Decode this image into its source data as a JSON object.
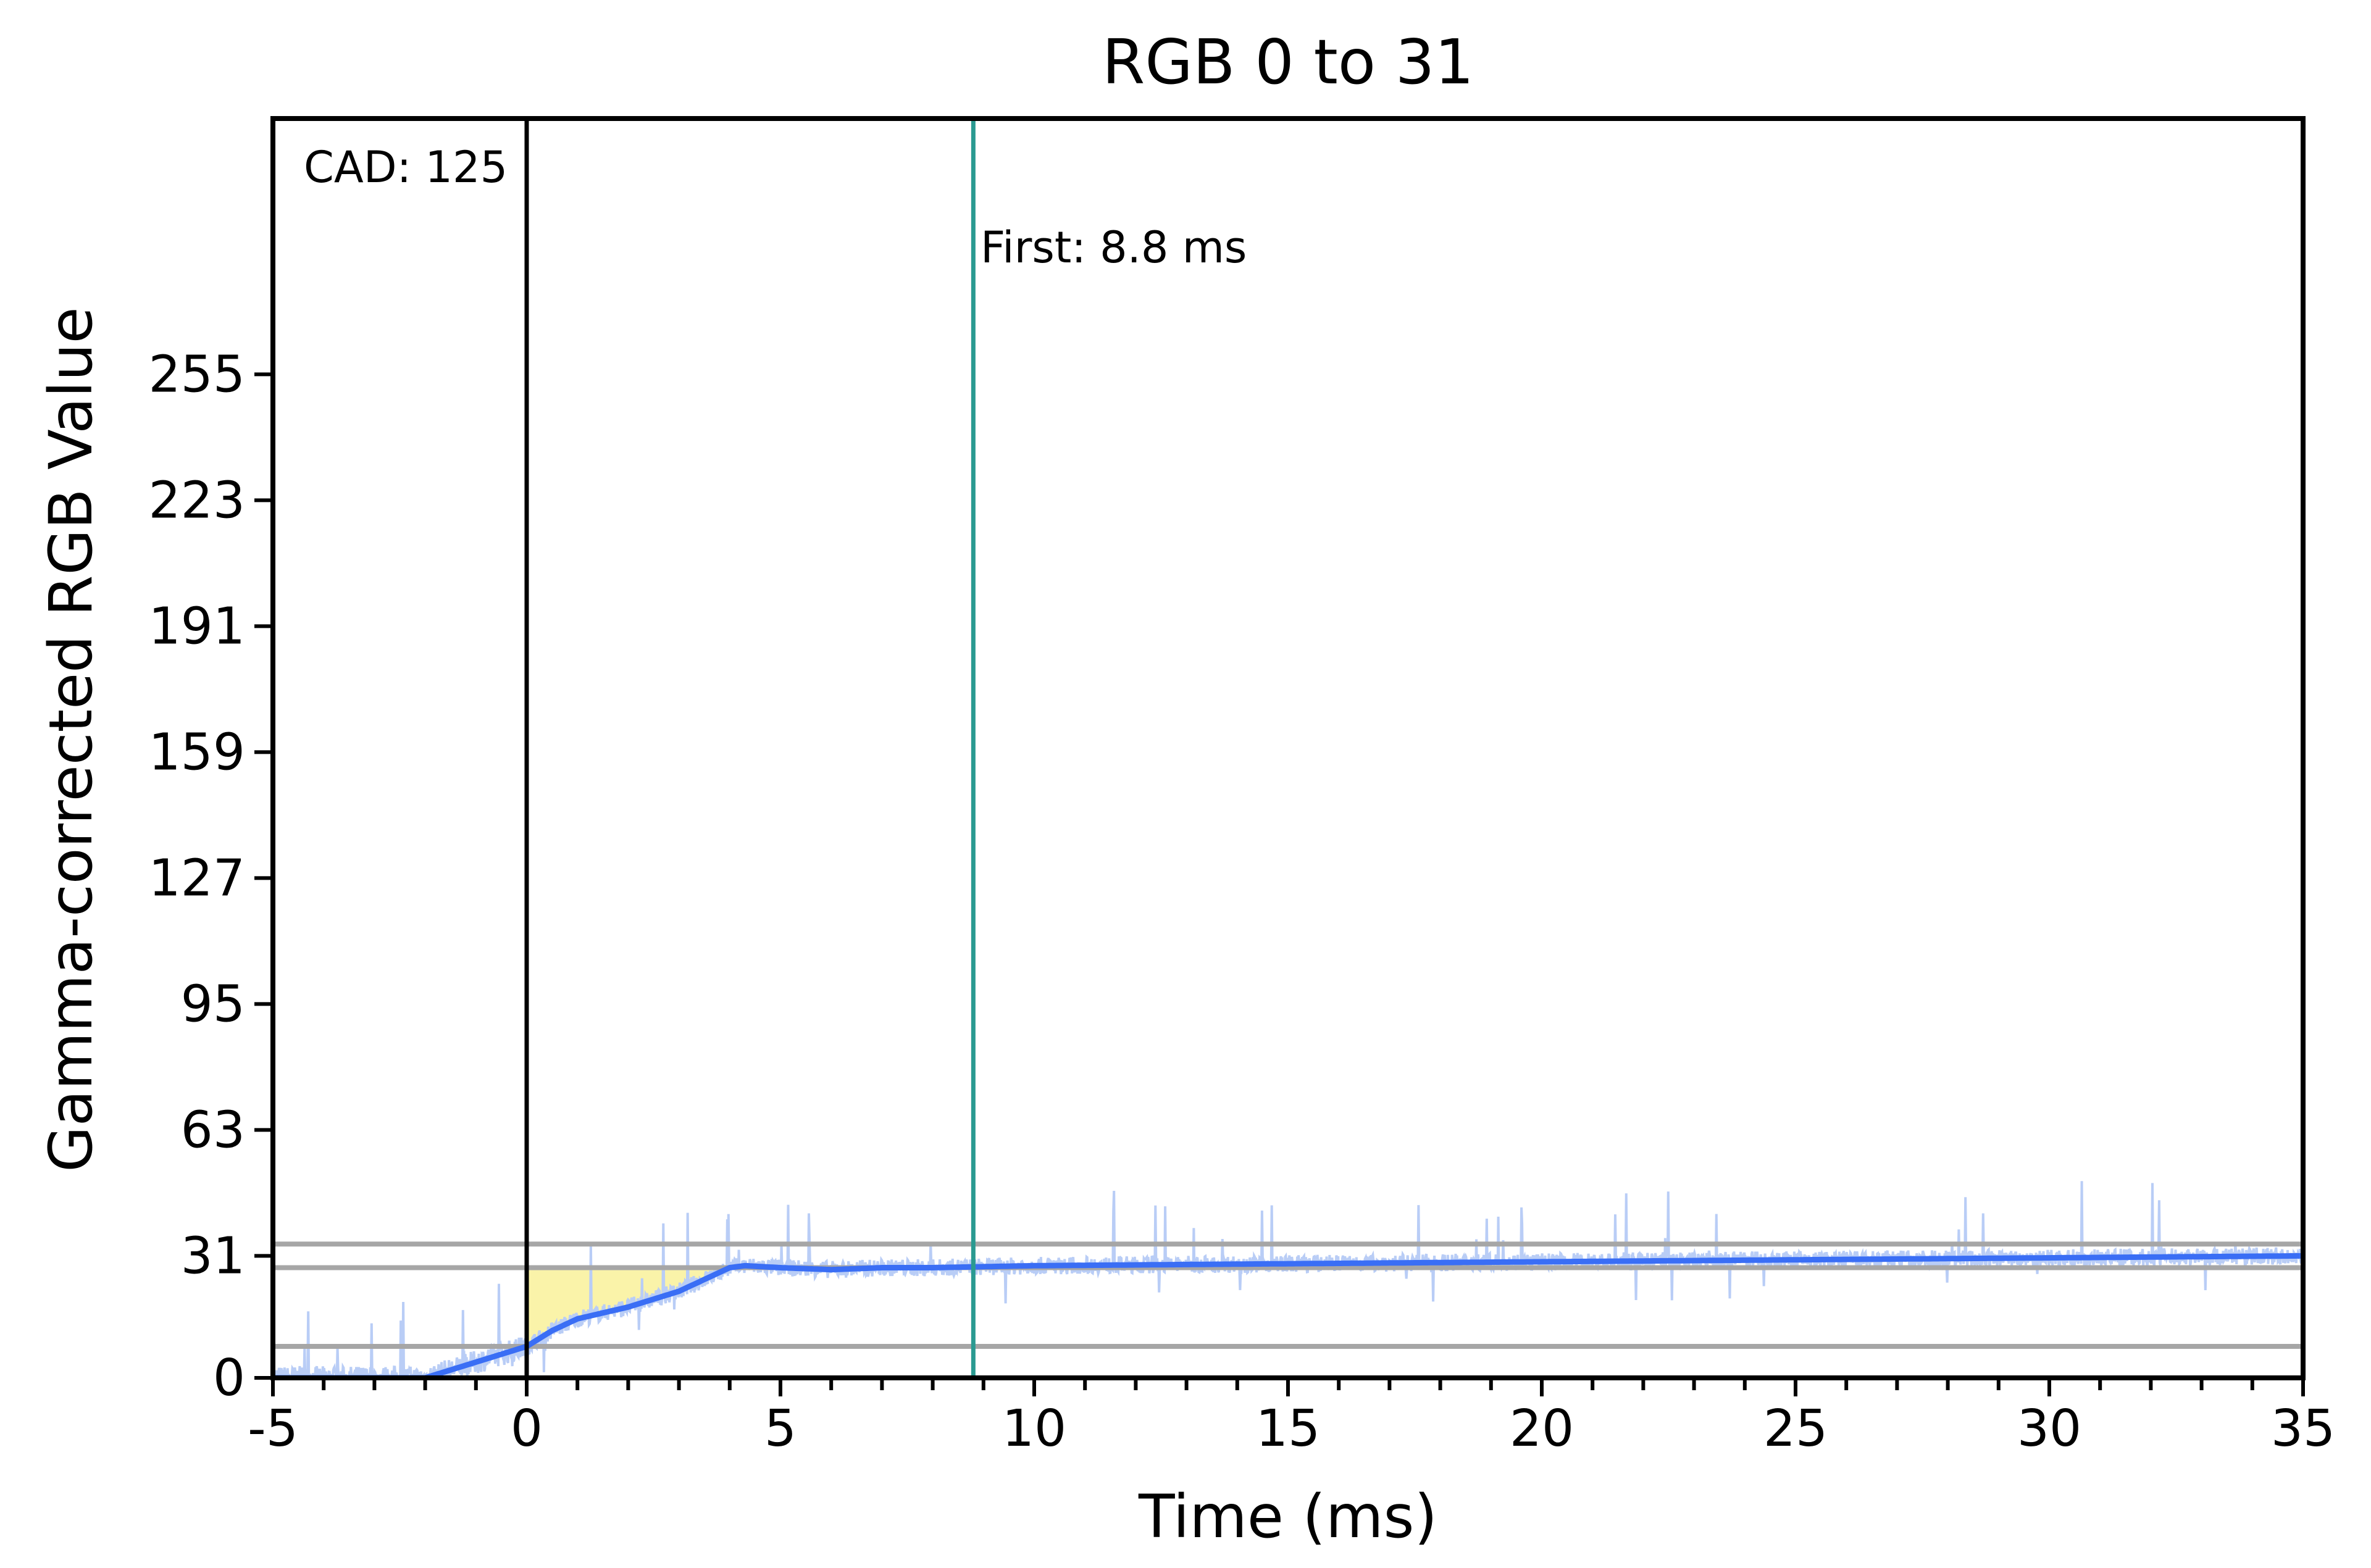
{
  "chart_data": {
    "type": "line",
    "title": "RGB 0 to 31",
    "xlabel": "Time (ms)",
    "ylabel": "Gamma-corrected RGB Value",
    "xlim": [
      -5,
      35
    ],
    "ylim": [
      0,
      320
    ],
    "x_ticks": [
      -5,
      0,
      5,
      10,
      15,
      20,
      25,
      30,
      35
    ],
    "x_tick_labels": [
      "-5",
      "0",
      "5",
      "10",
      "15",
      "20",
      "25",
      "30",
      "35"
    ],
    "y_ticks": [
      0,
      31,
      63,
      95,
      127,
      159,
      191,
      223,
      255
    ],
    "y_tick_labels": [
      "0",
      "31",
      "63",
      "95",
      "127",
      "159",
      "191",
      "223",
      "255"
    ],
    "reference_lines": [
      8,
      28,
      34
    ],
    "cad_label": "CAD: 125",
    "first_label": "First: 8.8 ms",
    "first_x": 8.8,
    "start_x": 0,
    "shade_range": [
      0,
      4.2
    ],
    "colors": {
      "smoothed": "#3a6ef5",
      "raw": "#b9cdf6",
      "first_line": "#2a9a91",
      "reference": "#a6a6a6",
      "shade": "#faf2a0",
      "start_line": "#000000"
    },
    "series": [
      {
        "type": "smoothed",
        "x": [
          -5,
          -2,
          -1.5,
          -1,
          -0.5,
          0,
          0.5,
          1,
          2,
          3,
          3.5,
          4,
          4.3,
          5,
          6,
          7,
          8,
          10,
          15,
          20,
          25,
          30,
          35
        ],
        "y": [
          0,
          0,
          2,
          4,
          6,
          8,
          12,
          15,
          18,
          22,
          25,
          28,
          28.5,
          28,
          27.5,
          28,
          28,
          28.5,
          29,
          29.5,
          30,
          30.5,
          31
        ]
      }
    ]
  }
}
